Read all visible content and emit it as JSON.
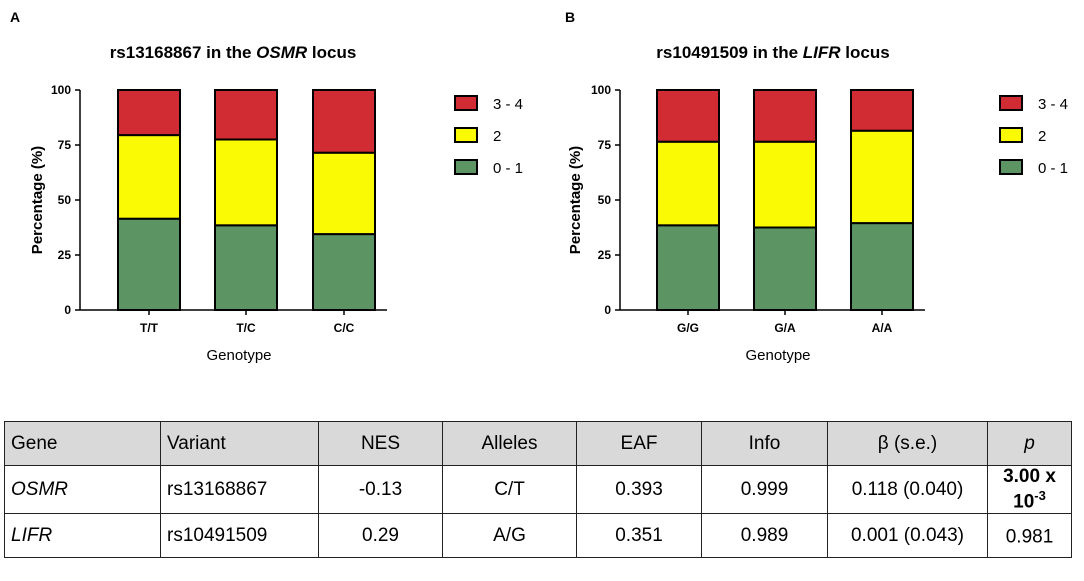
{
  "colors": {
    "red": "#d12b34",
    "yellow": "#fafa05",
    "green": "#5c9464",
    "outline": "#000000"
  },
  "chart_data": [
    {
      "type": "bar",
      "stacked": true,
      "panel_label": "A",
      "title": {
        "prefix": "rs13168867 in the ",
        "gene": "OSMR",
        "suffix": " locus"
      },
      "xlabel": "Genotype",
      "ylabel": "Percentage (%)",
      "ylim": [
        0,
        100
      ],
      "yticks": [
        "0",
        "25",
        "50",
        "75",
        "100"
      ],
      "categories": [
        "T/T",
        "T/C",
        "C/C"
      ],
      "legend_position": "right",
      "series": [
        {
          "name": "0 - 1",
          "color": "#5c9464",
          "values": [
            41.5,
            38.5,
            34.5
          ]
        },
        {
          "name": "2",
          "color": "#fafa05",
          "values": [
            38,
            39,
            37
          ]
        },
        {
          "name": "3 - 4",
          "color": "#d12b34",
          "values": [
            20.5,
            22.5,
            28.5
          ]
        }
      ]
    },
    {
      "type": "bar",
      "stacked": true,
      "panel_label": "B",
      "title": {
        "prefix": "rs10491509 in the ",
        "gene": "LIFR",
        "suffix": " locus"
      },
      "xlabel": "Genotype",
      "ylabel": "Percentage (%)",
      "ylim": [
        0,
        100
      ],
      "yticks": [
        "0",
        "25",
        "50",
        "75",
        "100"
      ],
      "categories": [
        "G/G",
        "G/A",
        "A/A"
      ],
      "legend_position": "right",
      "series": [
        {
          "name": "0 - 1",
          "color": "#5c9464",
          "values": [
            38.5,
            37.5,
            39.5
          ]
        },
        {
          "name": "2",
          "color": "#fafa05",
          "values": [
            38,
            39,
            42
          ]
        },
        {
          "name": "3 - 4",
          "color": "#d12b34",
          "values": [
            23.5,
            23.5,
            18.5
          ]
        }
      ]
    }
  ],
  "table": {
    "headers": [
      "Gene",
      "Variant",
      "NES",
      "Alleles",
      "EAF",
      "Info",
      "β (s.e.)",
      "p"
    ],
    "rows": [
      {
        "gene": "OSMR",
        "variant": "rs13168867",
        "nes": "-0.13",
        "alleles": "C/T",
        "eaf": "0.393",
        "info": "0.999",
        "beta": "0.118 (0.040)",
        "p_base": "3.00 x 10",
        "p_exp": "-3"
      },
      {
        "gene": "LIFR",
        "variant": "rs10491509",
        "nes": "0.29",
        "alleles": "A/G",
        "eaf": "0.351",
        "info": "0.989",
        "beta": "0.001 (0.043)",
        "p_base": "0.981",
        "p_exp": ""
      }
    ]
  }
}
